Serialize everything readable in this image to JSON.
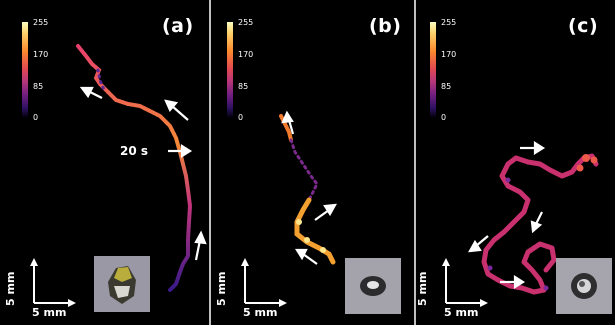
{
  "colorbar": {
    "ticks": [
      "255",
      "170",
      "85",
      "0"
    ]
  },
  "panels": [
    {
      "label": "(a)",
      "annotation": "20 s"
    },
    {
      "label": "(b)"
    },
    {
      "label": "(c)"
    }
  ],
  "scale_bar": {
    "horizontal": "5 mm",
    "vertical": "5 mm"
  },
  "colors": {
    "background": "#000000",
    "divider": "#bfbfbf",
    "arrow": "#ffffff"
  }
}
